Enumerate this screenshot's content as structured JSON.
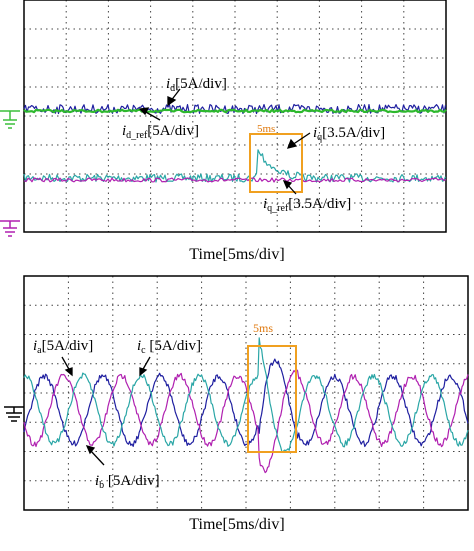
{
  "chart_data": [
    {
      "type": "line",
      "xlabel": "Time[5ms/div]",
      "series": [
        {
          "name": "id",
          "label_main": "i",
          "label_sub": "d",
          "label_scale": "[5A/div]",
          "color": "#1f1fa0"
        },
        {
          "name": "id_ref",
          "label_main": "i",
          "label_sub": "d_ref",
          "label_scale": "[5A/div]",
          "color": "#2db82d"
        },
        {
          "name": "iq",
          "label_main": "i",
          "label_sub": "q",
          "label_scale": "[3.5A/div]",
          "color": "#2aa6a6"
        },
        {
          "name": "iq_ref",
          "label_main": "i",
          "label_sub": "q_ref",
          "label_scale": "[3.5A/div]",
          "color": "#b020b0"
        }
      ],
      "annotation": {
        "text": "5ms",
        "color": "#e07a10"
      },
      "grid": true
    },
    {
      "type": "line",
      "xlabel": "Time[5ms/div]",
      "series": [
        {
          "name": "ia",
          "label_main": "i",
          "label_sub": "a",
          "label_scale": "[5A/div]",
          "color": "#1f1fa0"
        },
        {
          "name": "ib",
          "label_main": "i",
          "label_sub": "b",
          "label_scale": " [5A/div]",
          "color": "#b020b0"
        },
        {
          "name": "ic",
          "label_main": "i",
          "label_sub": "c",
          "label_scale": " [5A/div]",
          "color": "#2aa6a6"
        }
      ],
      "annotation": {
        "text": "5ms",
        "color": "#e07a10"
      },
      "grid": true
    }
  ]
}
